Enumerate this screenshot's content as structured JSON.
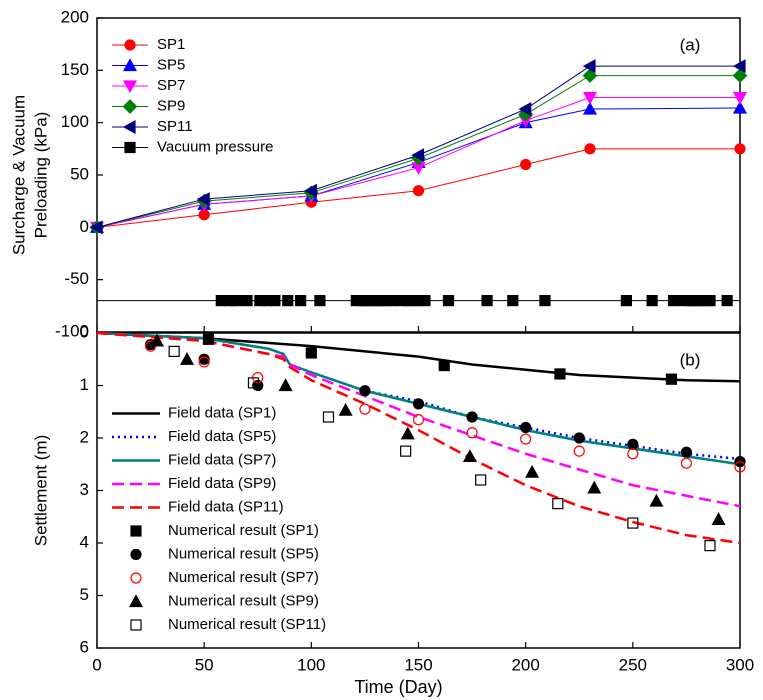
{
  "chart_data": [
    {
      "type": "line",
      "ylabel": [
        "Surcharge & Vacuum",
        "Preloading (kPa)"
      ],
      "annotation": "(a)",
      "xlim": [
        0,
        300
      ],
      "xticks": [
        0,
        50,
        100,
        150,
        200,
        250,
        300
      ],
      "show_xtick_labels": false,
      "ylim": [
        -100,
        200
      ],
      "yticks": [
        -100,
        -50,
        0,
        50,
        100,
        150,
        200
      ],
      "legend": "upper left",
      "series": [
        {
          "name": "SP1",
          "color": "#ff0000",
          "marker": "circle",
          "filled": true,
          "line": "solid",
          "x": [
            0,
            50,
            100,
            150,
            200,
            230,
            300
          ],
          "values": [
            0,
            12,
            24,
            35,
            60,
            75,
            75
          ]
        },
        {
          "name": "SP5",
          "color": "#0000ff",
          "marker": "triangle-up",
          "filled": true,
          "line": "solid",
          "x": [
            0,
            50,
            100,
            150,
            200,
            230,
            300
          ],
          "values": [
            0,
            22,
            30,
            62,
            100,
            113,
            114
          ]
        },
        {
          "name": "SP7",
          "color": "#ff00ff",
          "marker": "triangle-down",
          "filled": true,
          "line": "solid",
          "x": [
            0,
            50,
            100,
            150,
            200,
            230,
            300
          ],
          "values": [
            0,
            22,
            30,
            57,
            102,
            124,
            124
          ]
        },
        {
          "name": "SP9",
          "color": "#008000",
          "marker": "diamond",
          "filled": true,
          "line": "solid",
          "x": [
            0,
            50,
            100,
            150,
            200,
            230,
            300
          ],
          "values": [
            0,
            25,
            33,
            66,
            108,
            145,
            145
          ]
        },
        {
          "name": "SP11",
          "color": "#000080",
          "marker": "triangle-left",
          "filled": true,
          "line": "solid",
          "x": [
            0,
            50,
            100,
            150,
            200,
            230,
            300
          ],
          "values": [
            0,
            27,
            35,
            69,
            113,
            154,
            154
          ]
        },
        {
          "name": "Vacuum pressure",
          "color": "#000000",
          "marker": "square",
          "filled": true,
          "line": "solid",
          "x": [
            0,
            58,
            62,
            65,
            70,
            76,
            79,
            83,
            89,
            95,
            104,
            121,
            124,
            126,
            128,
            131,
            133,
            135,
            138,
            142,
            145,
            147,
            150,
            153,
            164,
            182,
            194,
            209,
            247,
            259,
            269,
            274,
            277,
            279,
            281,
            284,
            286,
            294,
            300
          ],
          "values": [
            -70,
            -70,
            -70,
            -70,
            -70,
            -70,
            -70,
            -70,
            -70,
            -70,
            -70,
            -70,
            -70,
            -70,
            -70,
            -70,
            -70,
            -70,
            -70,
            -70,
            -70,
            -70,
            -70,
            -70,
            -70,
            -70,
            -70,
            -70,
            -70,
            -70,
            -70,
            -70,
            -70,
            -70,
            -70,
            -70,
            -70,
            -70,
            -70
          ],
          "marker_skip_ends": true
        }
      ]
    },
    {
      "type": "line",
      "ylabel": [
        "Settlement (m)"
      ],
      "xlabel": "Time (Day)",
      "annotation": "(b)",
      "xlim": [
        0,
        300
      ],
      "xticks": [
        0,
        50,
        100,
        150,
        200,
        250,
        300
      ],
      "show_xtick_labels": true,
      "ylim": [
        6,
        0
      ],
      "yticks": [
        0,
        1,
        2,
        3,
        4,
        5,
        6
      ],
      "legend": "lower left",
      "series": [
        {
          "name": "Field data (SP1)",
          "color": "#000000",
          "marker": "none",
          "line": "solid",
          "x": [
            0,
            50,
            100,
            150,
            175,
            200,
            225,
            250,
            275,
            300
          ],
          "values": [
            0,
            0.1,
            0.25,
            0.45,
            0.6,
            0.7,
            0.8,
            0.85,
            0.9,
            0.92
          ]
        },
        {
          "name": "Field data (SP5)",
          "color": "#0000ff",
          "marker": "none",
          "line": "dot",
          "x": [
            0,
            50,
            80,
            87,
            90,
            100,
            125,
            150,
            175,
            200,
            225,
            250,
            275,
            300
          ],
          "values": [
            0,
            0.1,
            0.3,
            0.4,
            0.6,
            0.75,
            1.1,
            1.3,
            1.6,
            1.8,
            2.0,
            2.15,
            2.3,
            2.4
          ]
        },
        {
          "name": "Field data (SP7)",
          "color": "#008080",
          "marker": "none",
          "line": "solid",
          "x": [
            0,
            50,
            80,
            87,
            90,
            100,
            125,
            150,
            175,
            200,
            225,
            250,
            275,
            300
          ],
          "values": [
            0,
            0.1,
            0.3,
            0.4,
            0.6,
            0.75,
            1.1,
            1.35,
            1.6,
            1.85,
            2.05,
            2.2,
            2.35,
            2.5
          ]
        },
        {
          "name": "Field data (SP9)",
          "color": "#ff00ff",
          "marker": "none",
          "line": "dash",
          "x": [
            0,
            50,
            80,
            87,
            90,
            100,
            125,
            150,
            175,
            200,
            225,
            250,
            275,
            300
          ],
          "values": [
            0,
            0.15,
            0.4,
            0.45,
            0.6,
            0.8,
            1.2,
            1.6,
            1.95,
            2.3,
            2.6,
            2.9,
            3.1,
            3.3
          ]
        },
        {
          "name": "Field data (SP11)",
          "color": "#ff0000",
          "marker": "none",
          "line": "dash",
          "x": [
            0,
            50,
            80,
            87,
            90,
            100,
            125,
            150,
            175,
            200,
            225,
            250,
            275,
            300
          ],
          "values": [
            0,
            0.15,
            0.4,
            0.5,
            0.65,
            0.9,
            1.35,
            1.85,
            2.4,
            2.9,
            3.3,
            3.6,
            3.85,
            4.0
          ]
        },
        {
          "name": "Numerical result (SP1)",
          "color": "#000000",
          "marker": "square",
          "filled": true,
          "line": "none",
          "x": [
            52,
            100,
            162,
            216,
            268
          ],
          "values": [
            0.12,
            0.38,
            0.62,
            0.78,
            0.88
          ]
        },
        {
          "name": "Numerical result (SP5)",
          "color": "#000000",
          "marker": "circle",
          "filled": true,
          "line": "none",
          "x": [
            25,
            50,
            75,
            125,
            150,
            175,
            200,
            225,
            250,
            275,
            300
          ],
          "values": [
            0.22,
            0.5,
            1.0,
            1.1,
            1.35,
            1.6,
            1.8,
            2.0,
            2.12,
            2.27,
            2.45
          ]
        },
        {
          "name": "Numerical result (SP7)",
          "color": "#ff0000",
          "marker": "circle",
          "filled": false,
          "line": "none",
          "x": [
            25,
            50,
            75,
            125,
            150,
            175,
            200,
            225,
            250,
            275,
            300
          ],
          "values": [
            0.25,
            0.55,
            0.85,
            1.45,
            1.65,
            1.9,
            2.02,
            2.25,
            2.3,
            2.48,
            2.55
          ]
        },
        {
          "name": "Numerical result (SP9)",
          "color": "#000000",
          "marker": "triangle-up",
          "filled": true,
          "line": "none",
          "x": [
            28,
            42,
            88,
            116,
            145,
            174,
            203,
            232,
            261,
            290
          ],
          "values": [
            0.15,
            0.5,
            1.0,
            1.47,
            1.92,
            2.35,
            2.65,
            2.95,
            3.2,
            3.55
          ]
        },
        {
          "name": "Numerical result (SP11)",
          "color": "#000000",
          "marker": "square",
          "filled": false,
          "line": "none",
          "x": [
            36,
            73,
            108,
            144,
            179,
            215,
            250,
            286
          ],
          "values": [
            0.35,
            0.95,
            1.6,
            2.25,
            2.8,
            3.25,
            3.62,
            4.05
          ]
        }
      ]
    }
  ]
}
